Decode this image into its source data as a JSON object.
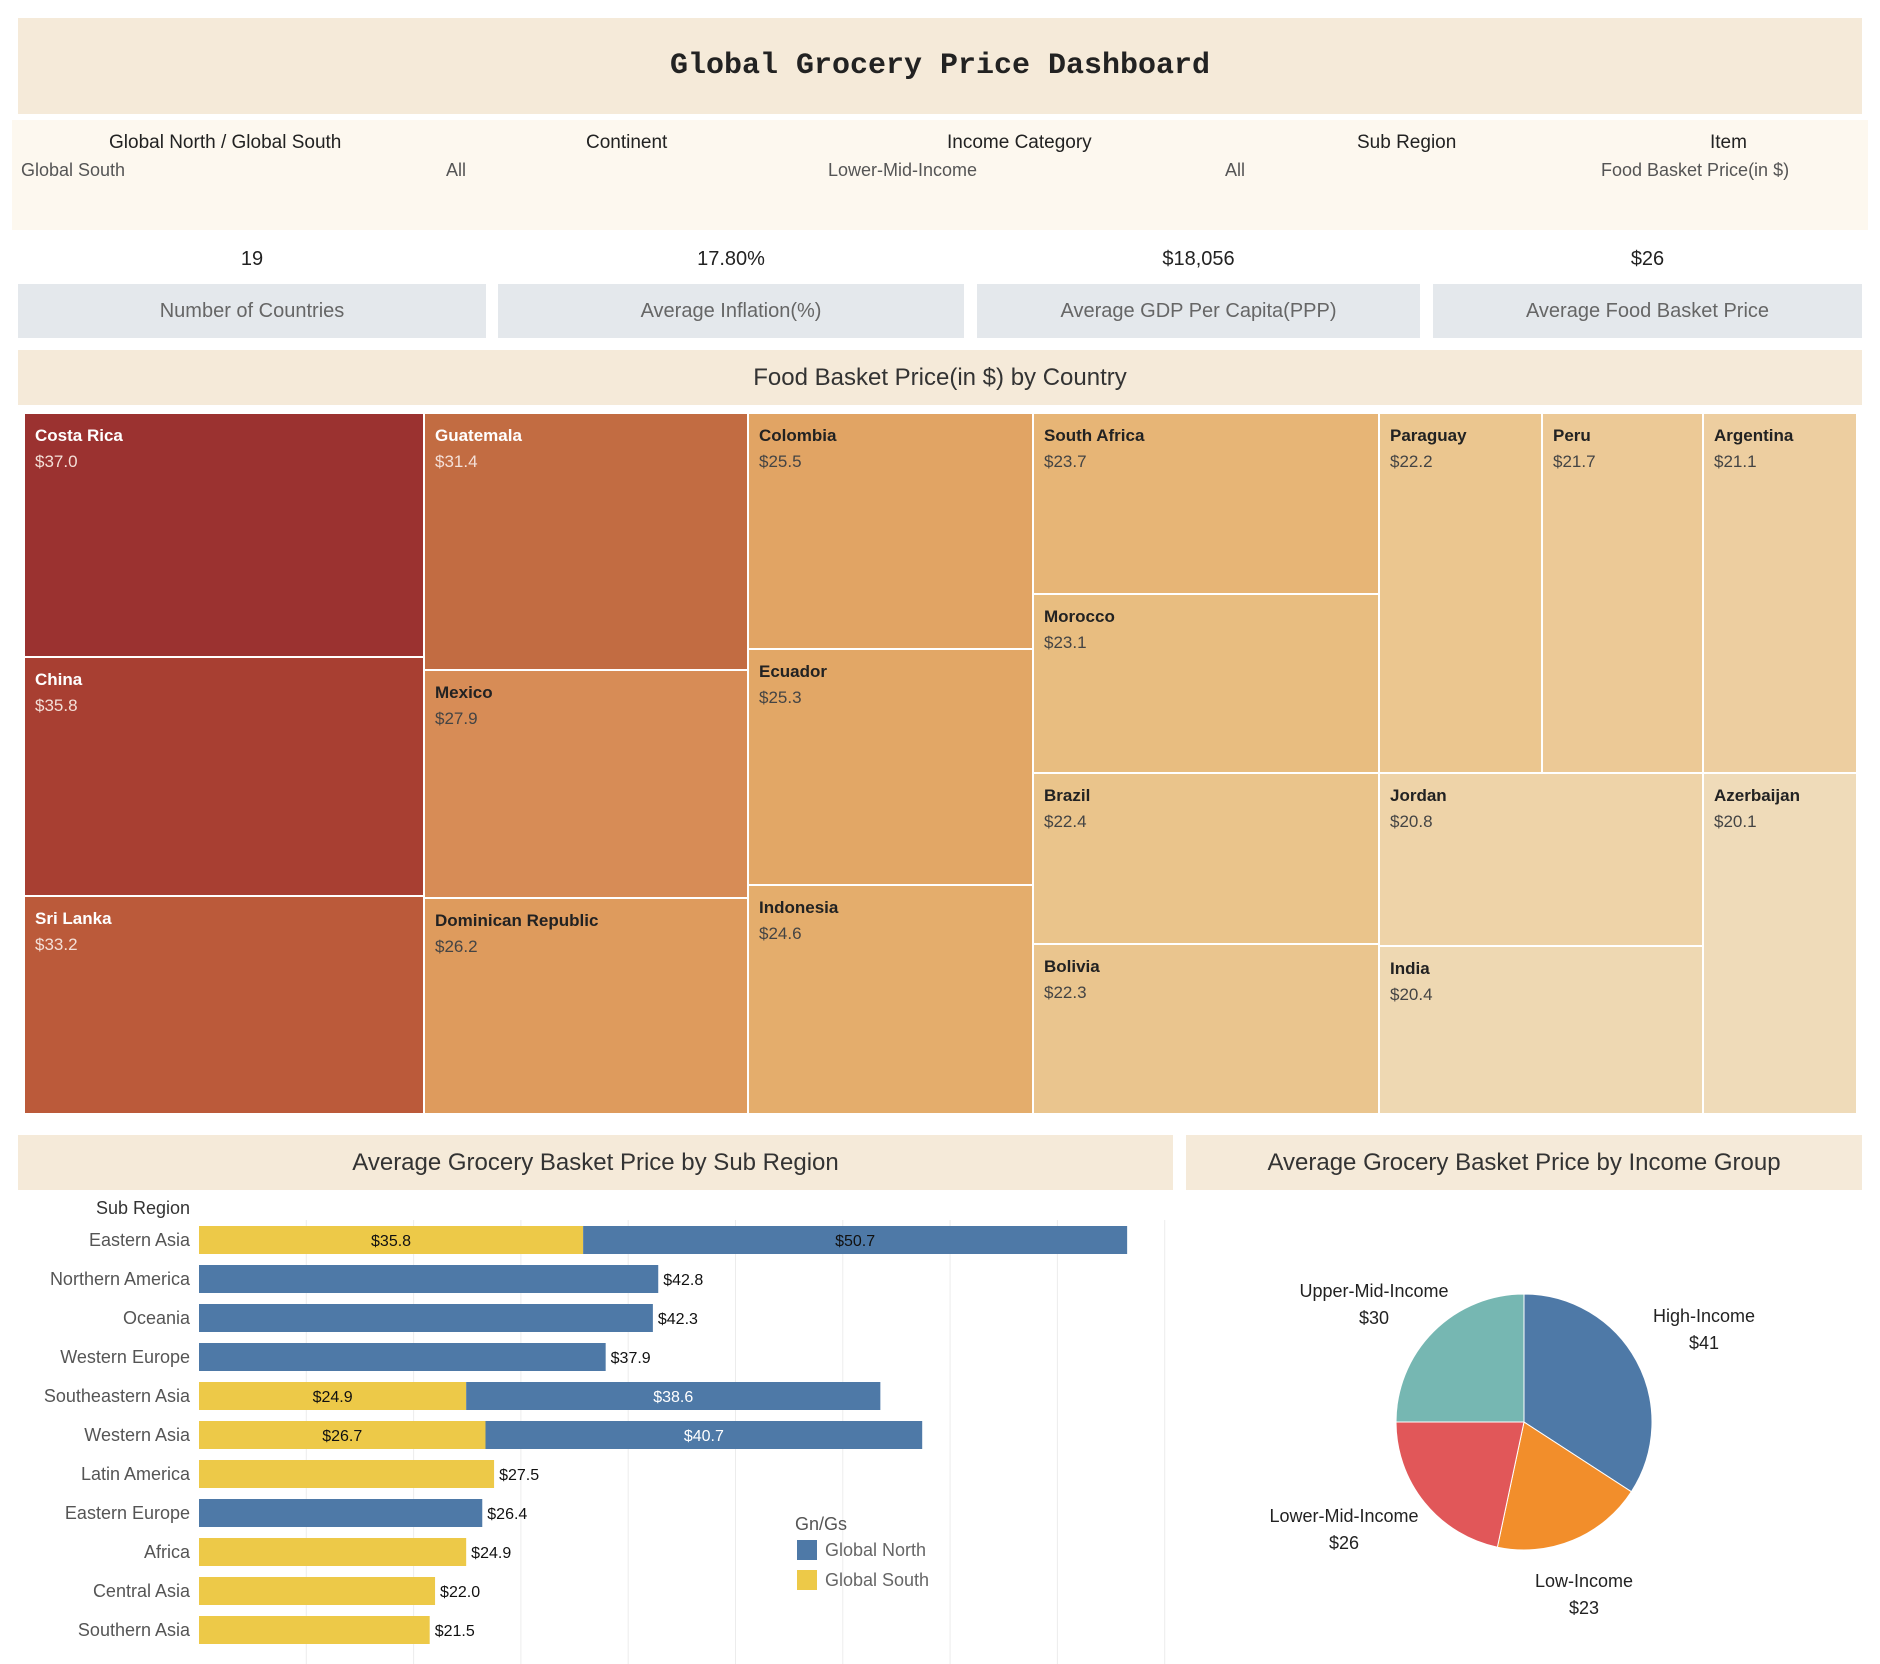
{
  "title": "Global Grocery Price Dashboard",
  "filters": [
    {
      "label": "Global North / Global South",
      "value": "Global South"
    },
    {
      "label": "Continent",
      "value": "All"
    },
    {
      "label": "Income Category",
      "value": "Lower-Mid-Income"
    },
    {
      "label": "Sub Region",
      "value": "All"
    },
    {
      "label": "Item",
      "value": "Food Basket Price(in $)"
    }
  ],
  "kpis": [
    {
      "value": "19",
      "label": "Number of Countries"
    },
    {
      "value": "17.80%",
      "label": "Average Inflation(%)"
    },
    {
      "value": "$18,056",
      "label": "Average GDP Per Capita(PPP)"
    },
    {
      "value": "$26",
      "label": "Average Food Basket Price"
    }
  ],
  "treemap": {
    "title": "Food Basket Price(in $)  by Country",
    "tiles": [
      {
        "country": "Costa Rica",
        "price": "$37.0",
        "value": 37.0,
        "color": "#9b3230"
      },
      {
        "country": "China",
        "price": "$35.8",
        "value": 35.8,
        "color": "#a83f32"
      },
      {
        "country": "Sri Lanka",
        "price": "$33.2",
        "value": 33.2,
        "color": "#bb5a3a"
      },
      {
        "country": "Guatemala",
        "price": "$31.4",
        "value": 31.4,
        "color": "#c26c42"
      },
      {
        "country": "Mexico",
        "price": "$27.9",
        "value": 27.9,
        "color": "#d78c56"
      },
      {
        "country": "Dominican Republic",
        "price": "$26.2",
        "value": 26.2,
        "color": "#de9b5d"
      },
      {
        "country": "Colombia",
        "price": "$25.5",
        "value": 25.5,
        "color": "#e1a464"
      },
      {
        "country": "Ecuador",
        "price": "$25.3",
        "value": 25.3,
        "color": "#e2a766"
      },
      {
        "country": "Indonesia",
        "price": "$24.6",
        "value": 24.6,
        "color": "#e4ad6c"
      },
      {
        "country": "South Africa",
        "price": "$23.7",
        "value": 23.7,
        "color": "#e7b576"
      },
      {
        "country": "Morocco",
        "price": "$23.1",
        "value": 23.1,
        "color": "#e8bd80"
      },
      {
        "country": "Brazil",
        "price": "$22.4",
        "value": 22.4,
        "color": "#eac48b"
      },
      {
        "country": "Bolivia",
        "price": "$22.3",
        "value": 22.3,
        "color": "#eac58e"
      },
      {
        "country": "Paraguay",
        "price": "$22.2",
        "value": 22.2,
        "color": "#ebc68f"
      },
      {
        "country": "Peru",
        "price": "$21.7",
        "value": 21.7,
        "color": "#ecc996"
      },
      {
        "country": "Argentina",
        "price": "$21.1",
        "value": 21.1,
        "color": "#edcea0"
      },
      {
        "country": "Jordan",
        "price": "$20.8",
        "value": 20.8,
        "color": "#eed3a8"
      },
      {
        "country": "India",
        "price": "$20.4",
        "value": 20.4,
        "color": "#eed8b2"
      },
      {
        "country": "Azerbaijan",
        "price": "$20.1",
        "value": 20.1,
        "color": "#efdbb9"
      }
    ]
  },
  "bar_section": {
    "title": "Average Grocery Basket Price by Sub Region",
    "axis_header": "Sub Region"
  },
  "pie_section": {
    "title": "Average Grocery Basket Price by Income Group"
  },
  "legend": {
    "title": "Gn/Gs",
    "items": [
      {
        "name": "Global North",
        "color": "#4e79a7"
      },
      {
        "name": "Global South",
        "color": "#edc948"
      }
    ]
  },
  "chart_data": [
    {
      "type": "bar",
      "title": "Average Grocery Basket Price by Sub Region",
      "orientation": "horizontal",
      "stacked": true,
      "ylabel": "Sub Region",
      "categories": [
        "Eastern Asia",
        "Northern America",
        "Oceania",
        "Western Europe",
        "Southeastern Asia",
        "Western Asia",
        "Latin America",
        "Eastern Europe",
        "Africa",
        "Central Asia",
        "Southern Asia"
      ],
      "series": [
        {
          "name": "Global South",
          "color": "#edc948",
          "values": [
            35.8,
            null,
            null,
            null,
            24.9,
            26.7,
            27.5,
            null,
            24.9,
            22.0,
            21.5
          ]
        },
        {
          "name": "Global North",
          "color": "#4e79a7",
          "values": [
            50.7,
            42.8,
            42.3,
            37.9,
            38.6,
            40.7,
            null,
            26.4,
            null,
            null,
            null
          ]
        }
      ],
      "xlim": [
        0,
        90
      ],
      "grid": true,
      "legend_position": "bottom-right"
    },
    {
      "type": "pie",
      "title": "Average Grocery Basket Price by Income Group",
      "labels": [
        "High-Income",
        "Low-Income",
        "Lower-Mid-Income",
        "Upper-Mid-Income"
      ],
      "values": [
        41,
        23,
        26,
        30
      ],
      "value_labels": [
        "$41",
        "$23",
        "$26",
        "$30"
      ],
      "colors": [
        "#4e79a7",
        "#f28e2b",
        "#e15759",
        "#76b7b2"
      ]
    }
  ]
}
